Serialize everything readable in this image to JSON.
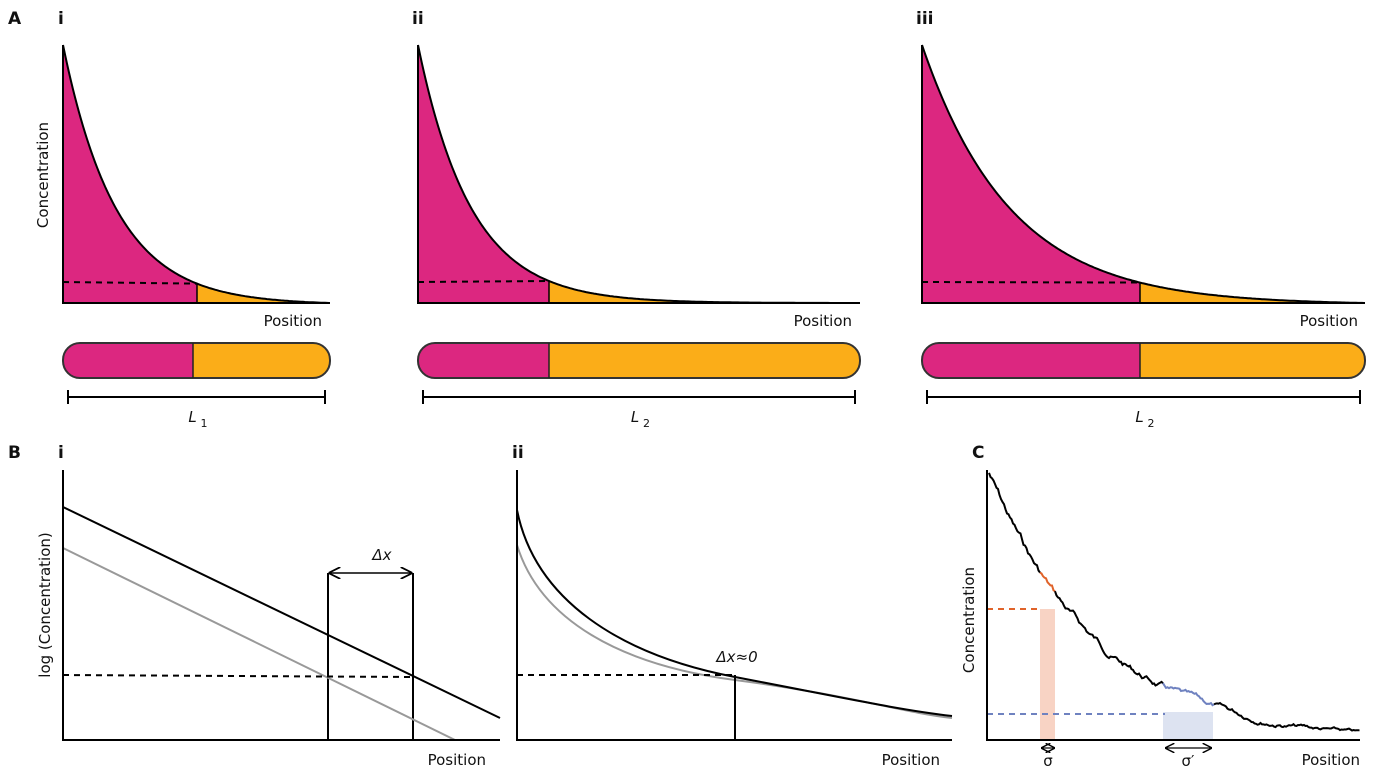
{
  "panel_a": {
    "label": "A",
    "panels": [
      {
        "label": "i",
        "y_axis": "Concentration",
        "x_axis": "Position",
        "length": {
          "letter": "L",
          "subscript": "1"
        }
      },
      {
        "label": "ii",
        "x_axis": "Position",
        "length": {
          "letter": "L",
          "subscript": "2"
        }
      },
      {
        "label": "iii",
        "x_axis": "Position",
        "length": {
          "letter": "L",
          "subscript": "2"
        }
      }
    ]
  },
  "panel_b": {
    "label": "B",
    "panels": [
      {
        "label": "i",
        "y_axis": "log (Concentration)",
        "x_axis": "Position",
        "annotation": "Δx"
      },
      {
        "label": "ii",
        "x_axis": "Position",
        "annotation": "Δx≈0"
      }
    ]
  },
  "panel_c": {
    "label": "C",
    "y_axis": "Concentration",
    "x_axis": "Position",
    "widths": [
      "σ",
      "σ′"
    ]
  }
}
